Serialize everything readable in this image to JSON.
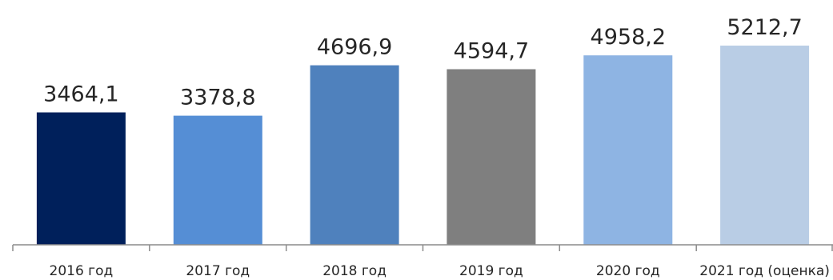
{
  "chart_data": {
    "type": "bar",
    "categories": [
      "2016 год",
      "2017 год",
      "2018 год",
      "2019 год",
      "2020 год",
      "2021 год (оценка)"
    ],
    "values": [
      3464.1,
      3378.8,
      4696.9,
      4594.7,
      4958.2,
      5212.7
    ],
    "value_labels": [
      "3464,1",
      "3378,8",
      "4696,9",
      "4594,7",
      "4958,2",
      "5212,7"
    ],
    "bar_colors": [
      "#00205b",
      "#558ed5",
      "#4f81bd",
      "#7f7f7f",
      "#8eb4e3",
      "#b9cde5"
    ],
    "title": "",
    "xlabel": "",
    "ylabel": "",
    "ylim": [
      0,
      5400
    ],
    "grid": false,
    "legend": "none"
  }
}
